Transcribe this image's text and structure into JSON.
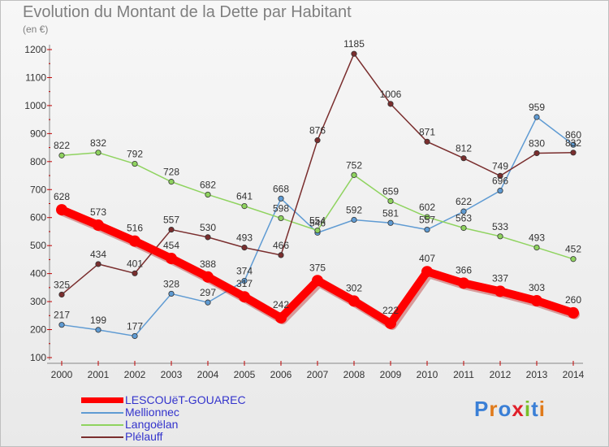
{
  "header": {
    "title": "Evolution du Montant de la Dette par Habitant",
    "unit": "(en €)"
  },
  "brand": {
    "logo_text": "Proxiti"
  },
  "chart_data": {
    "type": "line",
    "title": "Evolution du Montant de la Dette par Habitant",
    "ylabel": "(en €)",
    "xlabel": "",
    "ylim": [
      100,
      1200
    ],
    "ytick_step": 100,
    "grid": false,
    "legend_position": "bottom-left",
    "categories": [
      "2000",
      "2001",
      "2002",
      "2003",
      "2004",
      "2005",
      "2006",
      "2007",
      "2008",
      "2009",
      "2010",
      "2011",
      "2012",
      "2013",
      "2014"
    ],
    "series": [
      {
        "name": "LESCOUëT-GOUAREC",
        "color": "#ff0000",
        "highlight": true,
        "values": [
          628,
          573,
          516,
          454,
          388,
          317,
          242,
          375,
          302,
          222,
          407,
          366,
          337,
          303,
          260
        ]
      },
      {
        "name": "Mellionnec",
        "color": "#5f9bd3",
        "values": [
          217,
          199,
          177,
          328,
          297,
          374,
          668,
          546,
          592,
          581,
          557,
          622,
          696,
          959,
          860
        ]
      },
      {
        "name": "Langoëlan",
        "color": "#8fd35f",
        "values": [
          822,
          832,
          792,
          728,
          682,
          641,
          598,
          554,
          752,
          659,
          602,
          563,
          533,
          493,
          452
        ]
      },
      {
        "name": "Plélauff",
        "color": "#7a2e2e",
        "values": [
          325,
          434,
          401,
          557,
          530,
          493,
          466,
          876,
          1185,
          1006,
          871,
          812,
          749,
          830,
          832
        ]
      }
    ]
  }
}
